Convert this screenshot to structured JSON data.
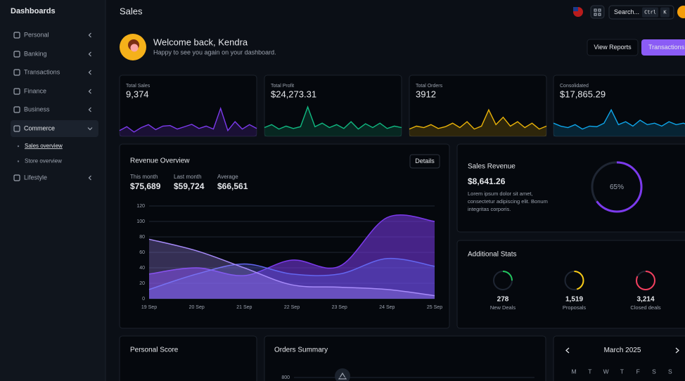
{
  "sidebar": {
    "title": "Dashboards",
    "items": [
      {
        "label": "Personal"
      },
      {
        "label": "Banking"
      },
      {
        "label": "Transactions"
      },
      {
        "label": "Finance"
      },
      {
        "label": "Business"
      },
      {
        "label": "Commerce",
        "children": [
          "Sales overview",
          "Store overview"
        ]
      },
      {
        "label": "Lifestyle"
      }
    ]
  },
  "header": {
    "title": "Sales",
    "search": "Search...",
    "shortcut": [
      "Ctrl",
      "K"
    ]
  },
  "welcome": {
    "title": "Welcome back, Kendra",
    "subtitle": "Happy to see you again on your dashboard.",
    "buttons": [
      "View Reports",
      "Transactions"
    ]
  },
  "kpis": [
    {
      "label": "Total Sales",
      "value": "9,374",
      "color": "#7c3aed",
      "ylim": [
        0,
        100
      ],
      "values": [
        15,
        28,
        10,
        25,
        35,
        18,
        30,
        32,
        20,
        28,
        36,
        22,
        30,
        20,
        90,
        15,
        45,
        20,
        35,
        22
      ]
    },
    {
      "label": "Total Profit",
      "value": "$24,273.31",
      "color": "#10b981",
      "ylim": [
        0,
        100
      ],
      "values": [
        25,
        35,
        20,
        30,
        22,
        28,
        95,
        28,
        40,
        25,
        35,
        22,
        45,
        20,
        38,
        25,
        40,
        22,
        30,
        25
      ]
    },
    {
      "label": "Total Orders",
      "value": "3912",
      "color": "#eab308",
      "ylim": [
        0,
        100
      ],
      "values": [
        20,
        30,
        25,
        35,
        22,
        28,
        40,
        25,
        45,
        20,
        30,
        85,
        35,
        60,
        30,
        45,
        25,
        40,
        20,
        30
      ]
    },
    {
      "label": "Consolidated",
      "value": "$17,865.29",
      "color": "#0ea5e9",
      "ylim": [
        0,
        100
      ],
      "values": [
        40,
        30,
        25,
        35,
        20,
        30,
        28,
        40,
        85,
        35,
        45,
        30,
        50,
        35,
        40,
        30,
        45,
        35,
        40,
        30
      ]
    }
  ],
  "revenue_overview": {
    "title": "Revenue Overview",
    "button": "Details",
    "summary": [
      {
        "label": "This month",
        "value": "$75,689"
      },
      {
        "label": "Last month",
        "value": "$59,724"
      },
      {
        "label": "Average",
        "value": "$66,561"
      }
    ],
    "chart_data": {
      "type": "area",
      "categories": [
        "19 Sep",
        "20 Sep",
        "21 Sep",
        "22 Sep",
        "23 Sep",
        "24 Sep",
        "25 Sep"
      ],
      "ylim": [
        0,
        120
      ],
      "yticks": [
        0,
        20,
        40,
        60,
        80,
        100,
        120
      ],
      "grid": true,
      "series": [
        {
          "color": "#7c3aed",
          "values": [
            32,
            40,
            30,
            50,
            42,
            105,
            100
          ]
        },
        {
          "color": "#6366f1",
          "values": [
            12,
            32,
            45,
            32,
            32,
            52,
            42
          ]
        },
        {
          "color": "#a78bfa",
          "values": [
            77,
            62,
            40,
            18,
            15,
            12,
            4
          ]
        }
      ]
    }
  },
  "sales_revenue": {
    "title": "Sales Revenue",
    "value": "$8,641.26",
    "description": [
      "Lorem ipsum dolor sit amet,",
      "consectetur adipiscing elit. Bonum",
      "integritas corporis."
    ],
    "progress": {
      "value": 65,
      "label": "65%"
    },
    "color": "#7c3aed"
  },
  "additional_stats": {
    "title": "Additional Stats",
    "items": [
      {
        "value": "278",
        "label": "New Deals",
        "progress": 25,
        "color": "#22c55e"
      },
      {
        "value": "1,519",
        "label": "Proposals",
        "progress": 45,
        "color": "#facc15"
      },
      {
        "value": "3,214",
        "label": "Closed deals",
        "progress": 82,
        "color": "#f43f5e"
      }
    ]
  },
  "personal_score": {
    "title": "Personal Score"
  },
  "orders_summary": {
    "title": "Orders Summary",
    "yticks": [
      800
    ]
  },
  "calendar": {
    "title": "March 2025",
    "weekdays": [
      "M",
      "T",
      "W",
      "T",
      "F",
      "S",
      "S"
    ]
  }
}
